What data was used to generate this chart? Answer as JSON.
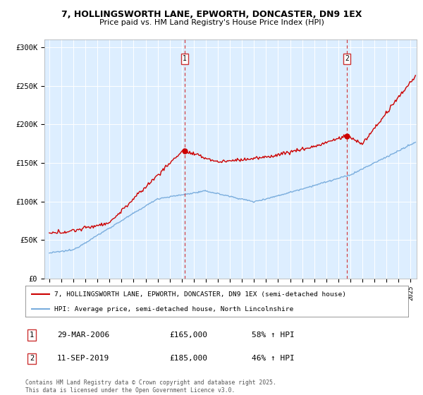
{
  "title_line1": "7, HOLLINGSWORTH LANE, EPWORTH, DONCASTER, DN9 1EX",
  "title_line2": "Price paid vs. HM Land Registry's House Price Index (HPI)",
  "ylabel_ticks": [
    "£0",
    "£50K",
    "£100K",
    "£150K",
    "£200K",
    "£250K",
    "£300K"
  ],
  "ytick_values": [
    0,
    50000,
    100000,
    150000,
    200000,
    250000,
    300000
  ],
  "ylim": [
    0,
    310000
  ],
  "xlim_start": 1994.6,
  "xlim_end": 2025.5,
  "red_color": "#cc0000",
  "blue_color": "#7aaddd",
  "background_color": "#ddeeff",
  "marker1_x": 2006.24,
  "marker1_y": 165000,
  "marker2_x": 2019.71,
  "marker2_y": 185000,
  "legend_line1": "7, HOLLINGSWORTH LANE, EPWORTH, DONCASTER, DN9 1EX (semi-detached house)",
  "legend_line2": "HPI: Average price, semi-detached house, North Lincolnshire",
  "annotation1_label": "1",
  "annotation1_date": "29-MAR-2006",
  "annotation1_price": "£165,000",
  "annotation1_hpi": "58% ↑ HPI",
  "annotation2_label": "2",
  "annotation2_date": "11-SEP-2019",
  "annotation2_price": "£185,000",
  "annotation2_hpi": "46% ↑ HPI",
  "footer": "Contains HM Land Registry data © Crown copyright and database right 2025.\nThis data is licensed under the Open Government Licence v3.0."
}
